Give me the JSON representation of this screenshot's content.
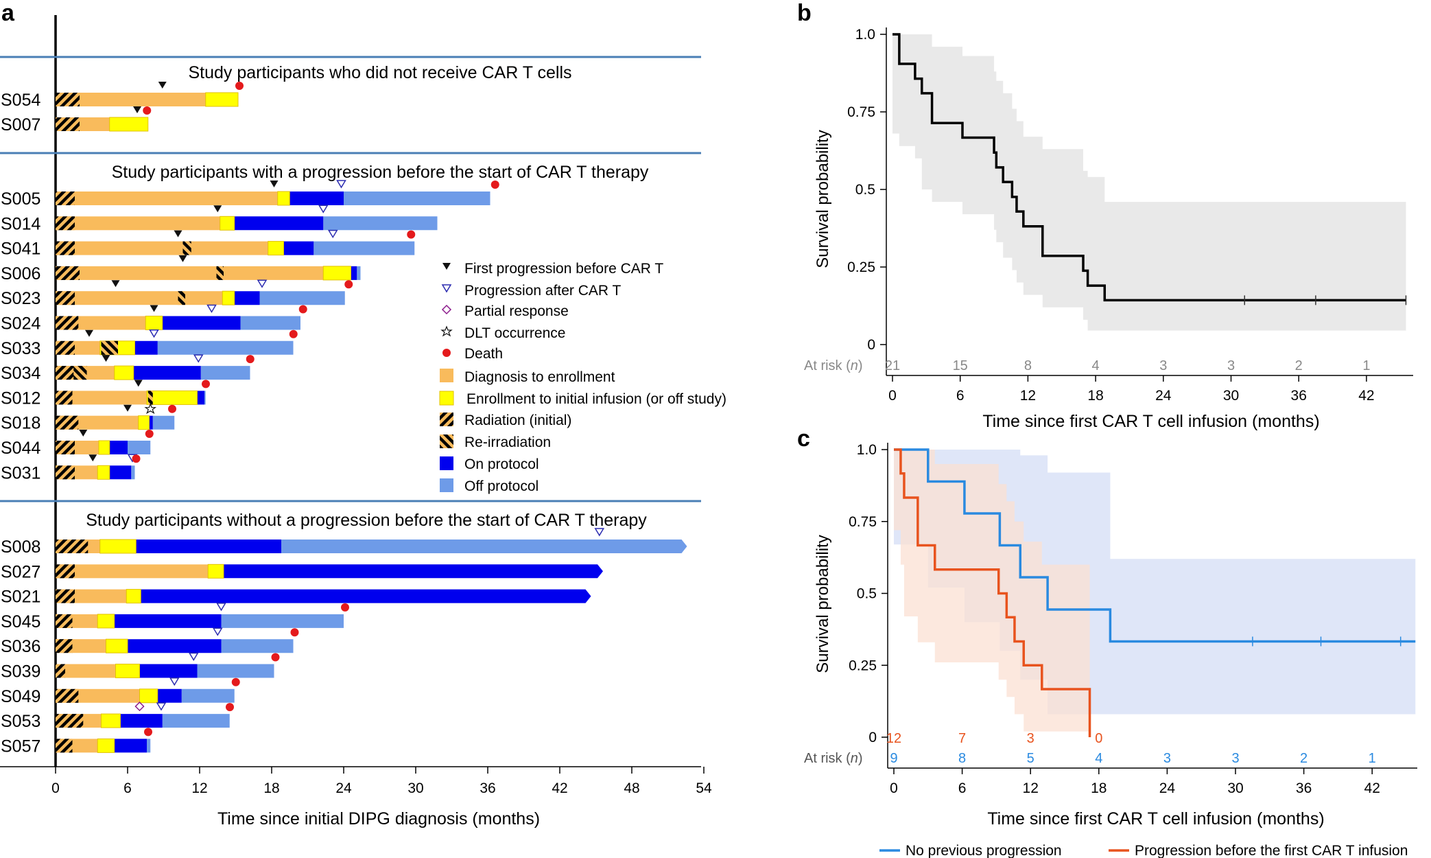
{
  "panel_labels": {
    "a": "a",
    "b": "b",
    "c": "c"
  },
  "colors": {
    "diagnosis": "#F9BB5C",
    "enrollment": "#FFFF00",
    "on_protocol": "#0000EE",
    "off_protocol": "#6E9BE8",
    "death": "#E41A1C",
    "section_line": "#4A7FB5",
    "progression_after": "#2B2BB0",
    "partial_response": "#8B1A8B",
    "km_ci": "#E9E9E9",
    "blue_series": "#2A8AE0",
    "orange_series": "#E8531E",
    "blue_ci": "#DCE3F7",
    "orange_ci": "#FBE0D3"
  },
  "chart_data": [
    {
      "type": "swimmer",
      "panel": "a",
      "xlabel": "Time since initial DIPG diagnosis (months)",
      "xlim": [
        0,
        54
      ],
      "xticks": [
        0,
        6,
        12,
        18,
        24,
        30,
        36,
        42,
        48,
        54
      ],
      "legend": [
        {
          "key": "first_prog",
          "label": "First progression before CAR T",
          "icon": "down-triangle-filled-icon"
        },
        {
          "key": "prog_after",
          "label": "Progression after CAR T",
          "icon": "down-triangle-open-icon"
        },
        {
          "key": "partial",
          "label": "Partial response",
          "icon": "diamond-open-icon"
        },
        {
          "key": "dlt",
          "label": "DLT occurrence",
          "icon": "star-open-icon"
        },
        {
          "key": "death",
          "label": "Death",
          "icon": "red-dot-icon"
        },
        {
          "key": "diagnosis",
          "label": "Diagnosis to enrollment",
          "icon": "orange-square-icon"
        },
        {
          "key": "enrollment",
          "label": "Enrollment to initial infusion (or off study)",
          "icon": "yellow-square-icon"
        },
        {
          "key": "radiation",
          "label": "Radiation (initial)",
          "icon": "hatch-icon"
        },
        {
          "key": "reirradiation",
          "label": "Re-irradiation",
          "icon": "reverse-hatch-icon"
        },
        {
          "key": "on",
          "label": "On protocol",
          "icon": "blue-square-icon"
        },
        {
          "key": "off",
          "label": "Off protocol",
          "icon": "light-blue-square-icon"
        }
      ],
      "groups": [
        {
          "title": "Study participants who did not receive CAR T cells",
          "rows": [
            {
              "id": "S054",
              "rad": 2,
              "enroll": 12.5,
              "infuse": 15.2,
              "first_prog": 8.9,
              "death": 15.2
            },
            {
              "id": "S007",
              "rad": 2,
              "enroll": 4.5,
              "infuse": 7.7,
              "first_prog": 6.8,
              "death": 7.5
            }
          ]
        },
        {
          "title": "Study participants with a progression before the start of CAR T therapy",
          "rows": [
            {
              "id": "S005",
              "rad": 1.6,
              "enroll": 18.5,
              "infuse": 19.5,
              "on_end": 24.0,
              "end": 36.2,
              "first_prog": 18.2,
              "prog_after": 23.8,
              "death": 36.5
            },
            {
              "id": "S014",
              "rad": 1.6,
              "enroll": 13.7,
              "infuse": 14.9,
              "on_end": 22.3,
              "end": 31.8,
              "first_prog": 13.5,
              "prog_after": 22.3
            },
            {
              "id": "S041",
              "rad": 1.6,
              "enroll": 17.7,
              "infuse": 19.0,
              "on_end": 21.5,
              "end": 29.9,
              "first_prog": 10.2,
              "prog_after": 23.1,
              "death": 29.5,
              "reirr": [
                10.6,
                11.3
              ]
            },
            {
              "id": "S006",
              "rad": 2.0,
              "enroll": 22.3,
              "infuse": 24.6,
              "on_end": 25.1,
              "end": 25.4,
              "first_prog": 10.6,
              "reirr": [
                13.4,
                14.0
              ]
            },
            {
              "id": "S023",
              "rad": 1.6,
              "enroll": 13.9,
              "infuse": 14.9,
              "on_end": 17.0,
              "end": 24.1,
              "first_prog": 5.0,
              "prog_after": 17.2,
              "death": 24.3,
              "reirr": [
                10.2,
                10.8
              ]
            },
            {
              "id": "S024",
              "rad": 1.9,
              "enroll": 7.5,
              "infuse": 8.9,
              "on_end": 15.4,
              "end": 20.4,
              "first_prog": 8.2,
              "prog_after": 13.0,
              "death": 20.5
            },
            {
              "id": "S033",
              "rad": 1.6,
              "enroll": 3.7,
              "infuse": 6.6,
              "on_end": 8.5,
              "end": 19.8,
              "first_prog": 2.8,
              "prog_after": 8.2,
              "death": 19.7,
              "reirr": [
                3.8,
                5.2
              ]
            },
            {
              "id": "S034",
              "rad": 2.6,
              "enroll": 4.9,
              "infuse": 6.5,
              "on_end": 12.1,
              "end": 16.2,
              "first_prog": 4.2,
              "prog_after": 11.9,
              "death": 16.1,
              "reirr": [
                1.5,
                2.6
              ]
            },
            {
              "id": "S012",
              "rad": 1.4,
              "enroll": 7.6,
              "infuse": 11.8,
              "on_end": 12.4,
              "end": 12.5,
              "first_prog": 6.9,
              "death": 12.4,
              "reirr": [
                7.7,
                8.1
              ]
            },
            {
              "id": "S018",
              "rad": 1.9,
              "enroll": 6.9,
              "infuse": 7.8,
              "on_end": 8.1,
              "end": 9.9,
              "first_prog": 6.0,
              "death": 9.6,
              "dlt": 7.9
            },
            {
              "id": "S044",
              "rad": 1.6,
              "enroll": 3.6,
              "infuse": 4.5,
              "on_end": 6.0,
              "end": 7.9,
              "first_prog": 2.3,
              "death": 7.7
            },
            {
              "id": "S031",
              "rad": 1.6,
              "enroll": 3.5,
              "infuse": 4.5,
              "on_end": 6.3,
              "end": 6.6,
              "first_prog": 3.1,
              "prog_after": 6.4,
              "death": 6.6
            }
          ]
        },
        {
          "title": "Study participants without a progression before the start of CAR T therapy",
          "rows": [
            {
              "id": "S008",
              "rad": 2.7,
              "enroll": 3.7,
              "infuse": 6.7,
              "on_end": 18.8,
              "end": 52.6,
              "prog_after": 45.3,
              "arrow": true
            },
            {
              "id": "S027",
              "rad": 1.6,
              "enroll": 12.7,
              "infuse": 14.0,
              "on_end": 45.6,
              "end": 45.6,
              "arrow": true
            },
            {
              "id": "S021",
              "rad": 1.6,
              "enroll": 5.9,
              "infuse": 7.1,
              "on_end": 44.6,
              "end": 44.6,
              "arrow": true
            },
            {
              "id": "S045",
              "rad": 1.4,
              "enroll": 3.5,
              "infuse": 4.9,
              "on_end": 13.8,
              "end": 24.0,
              "prog_after": 13.8,
              "death": 24.0
            },
            {
              "id": "S036",
              "rad": 1.4,
              "enroll": 4.2,
              "infuse": 6.0,
              "on_end": 13.8,
              "end": 19.8,
              "prog_after": 13.5,
              "death": 19.8
            },
            {
              "id": "S039",
              "rad": 0.8,
              "enroll": 5.0,
              "infuse": 7.0,
              "on_end": 11.8,
              "end": 18.2,
              "prog_after": 11.5,
              "death": 18.2
            },
            {
              "id": "S049",
              "rad": 1.9,
              "enroll": 7.0,
              "infuse": 8.5,
              "on_end": 10.5,
              "end": 14.9,
              "prog_after": 9.9,
              "death": 14.9
            },
            {
              "id": "S053",
              "rad": 2.3,
              "enroll": 3.8,
              "infuse": 5.4,
              "on_end": 8.9,
              "end": 14.5,
              "prog_after": 8.8,
              "partial": 7.0,
              "death": 14.4
            },
            {
              "id": "S057",
              "rad": 1.4,
              "enroll": 3.5,
              "infuse": 4.9,
              "on_end": 7.6,
              "end": 7.9,
              "death": 7.6
            }
          ]
        }
      ]
    },
    {
      "type": "line",
      "panel": "b",
      "xlabel": "Time since first CAR T cell infusion (months)",
      "ylabel": "Survival probability",
      "xlim": [
        -0.5,
        46
      ],
      "ylim": [
        0,
        1
      ],
      "xticks": [
        0,
        6,
        12,
        18,
        24,
        30,
        36,
        42
      ],
      "yticks": [
        0,
        0.25,
        0.5,
        0.75,
        1.0
      ],
      "ytick_labels": [
        "0",
        "0.25",
        "0.5",
        "0.75",
        "1.0"
      ],
      "series": [
        {
          "steps_x": [
            0,
            0.6,
            2.0,
            2.6,
            3.5,
            6.2,
            9.0,
            9.2,
            9.8,
            10.6,
            11.0,
            11.6,
            13.3,
            16.9,
            17.3,
            18.8,
            45.5
          ],
          "steps_y": [
            1.0,
            0.905,
            0.857,
            0.81,
            0.714,
            0.667,
            0.619,
            0.571,
            0.524,
            0.476,
            0.429,
            0.381,
            0.286,
            0.238,
            0.19,
            0.143,
            0.143
          ],
          "ci_upper": [
            1.0,
            1.0,
            1.0,
            1.0,
            0.96,
            0.93,
            0.88,
            0.85,
            0.81,
            0.76,
            0.72,
            0.67,
            0.63,
            0.56,
            0.54,
            0.46,
            0.325
          ],
          "ci_lower": [
            1.0,
            0.68,
            0.64,
            0.6,
            0.5,
            0.46,
            0.42,
            0.37,
            0.33,
            0.28,
            0.24,
            0.2,
            0.16,
            0.12,
            0.08,
            0.045,
            0.045
          ],
          "censor_x": [
            31.2,
            37.5,
            45.5
          ]
        }
      ],
      "at_risk_label": "At risk",
      "at_risk_n": "n",
      "at_risk": [
        21,
        15,
        8,
        4,
        3,
        3,
        2,
        1
      ]
    },
    {
      "type": "line",
      "panel": "c",
      "xlabel": "Time since first CAR T cell infusion (months)",
      "ylabel": "Survival probability",
      "xlim": [
        -0.5,
        46
      ],
      "ylim": [
        0,
        1
      ],
      "xticks": [
        0,
        6,
        12,
        18,
        24,
        30,
        36,
        42
      ],
      "yticks": [
        0,
        0.25,
        0.5,
        0.75,
        1.0
      ],
      "ytick_labels": [
        "0",
        "0.25",
        "0.5",
        "0.75",
        "1.0"
      ],
      "legend": [
        "No previous progression",
        "Progression before the first CAR T infusion"
      ],
      "series": [
        {
          "name": "No previous progression",
          "steps_x": [
            0,
            3.0,
            6.2,
            9.3,
            11.1,
            13.5,
            19.0,
            45.8
          ],
          "steps_y": [
            1.0,
            0.889,
            0.778,
            0.667,
            0.556,
            0.444,
            0.333,
            0.333
          ],
          "ci_upper": [
            1.0,
            1.0,
            1.0,
            1.0,
            0.98,
            0.92,
            0.62,
            0.62
          ],
          "ci_lower": [
            1.0,
            0.67,
            0.52,
            0.4,
            0.3,
            0.2,
            0.08,
            0.08
          ],
          "censor_x": [
            31.5,
            37.5,
            44.5
          ]
        },
        {
          "name": "Progression before the first CAR T infusion",
          "steps_x": [
            0,
            0.6,
            0.9,
            2.1,
            3.6,
            9.2,
            9.9,
            10.6,
            11.4,
            13.0,
            17.2
          ],
          "steps_y": [
            1.0,
            0.917,
            0.833,
            0.667,
            0.583,
            0.5,
            0.417,
            0.333,
            0.25,
            0.167,
            0.0
          ],
          "ci_upper": [
            1.0,
            1.0,
            1.0,
            1.0,
            0.95,
            0.88,
            0.82,
            0.75,
            0.68,
            0.6,
            0.45
          ],
          "ci_lower": [
            1.0,
            0.72,
            0.6,
            0.42,
            0.33,
            0.26,
            0.2,
            0.14,
            0.08,
            0.02,
            0.02
          ]
        }
      ],
      "at_risk_label": "At risk",
      "at_risk_n": "n",
      "at_risk_orange": [
        "12",
        "7",
        "3",
        "0"
      ],
      "at_risk_blue": [
        "9",
        "8",
        "5",
        "4",
        "3",
        "3",
        "2",
        "1"
      ]
    }
  ]
}
